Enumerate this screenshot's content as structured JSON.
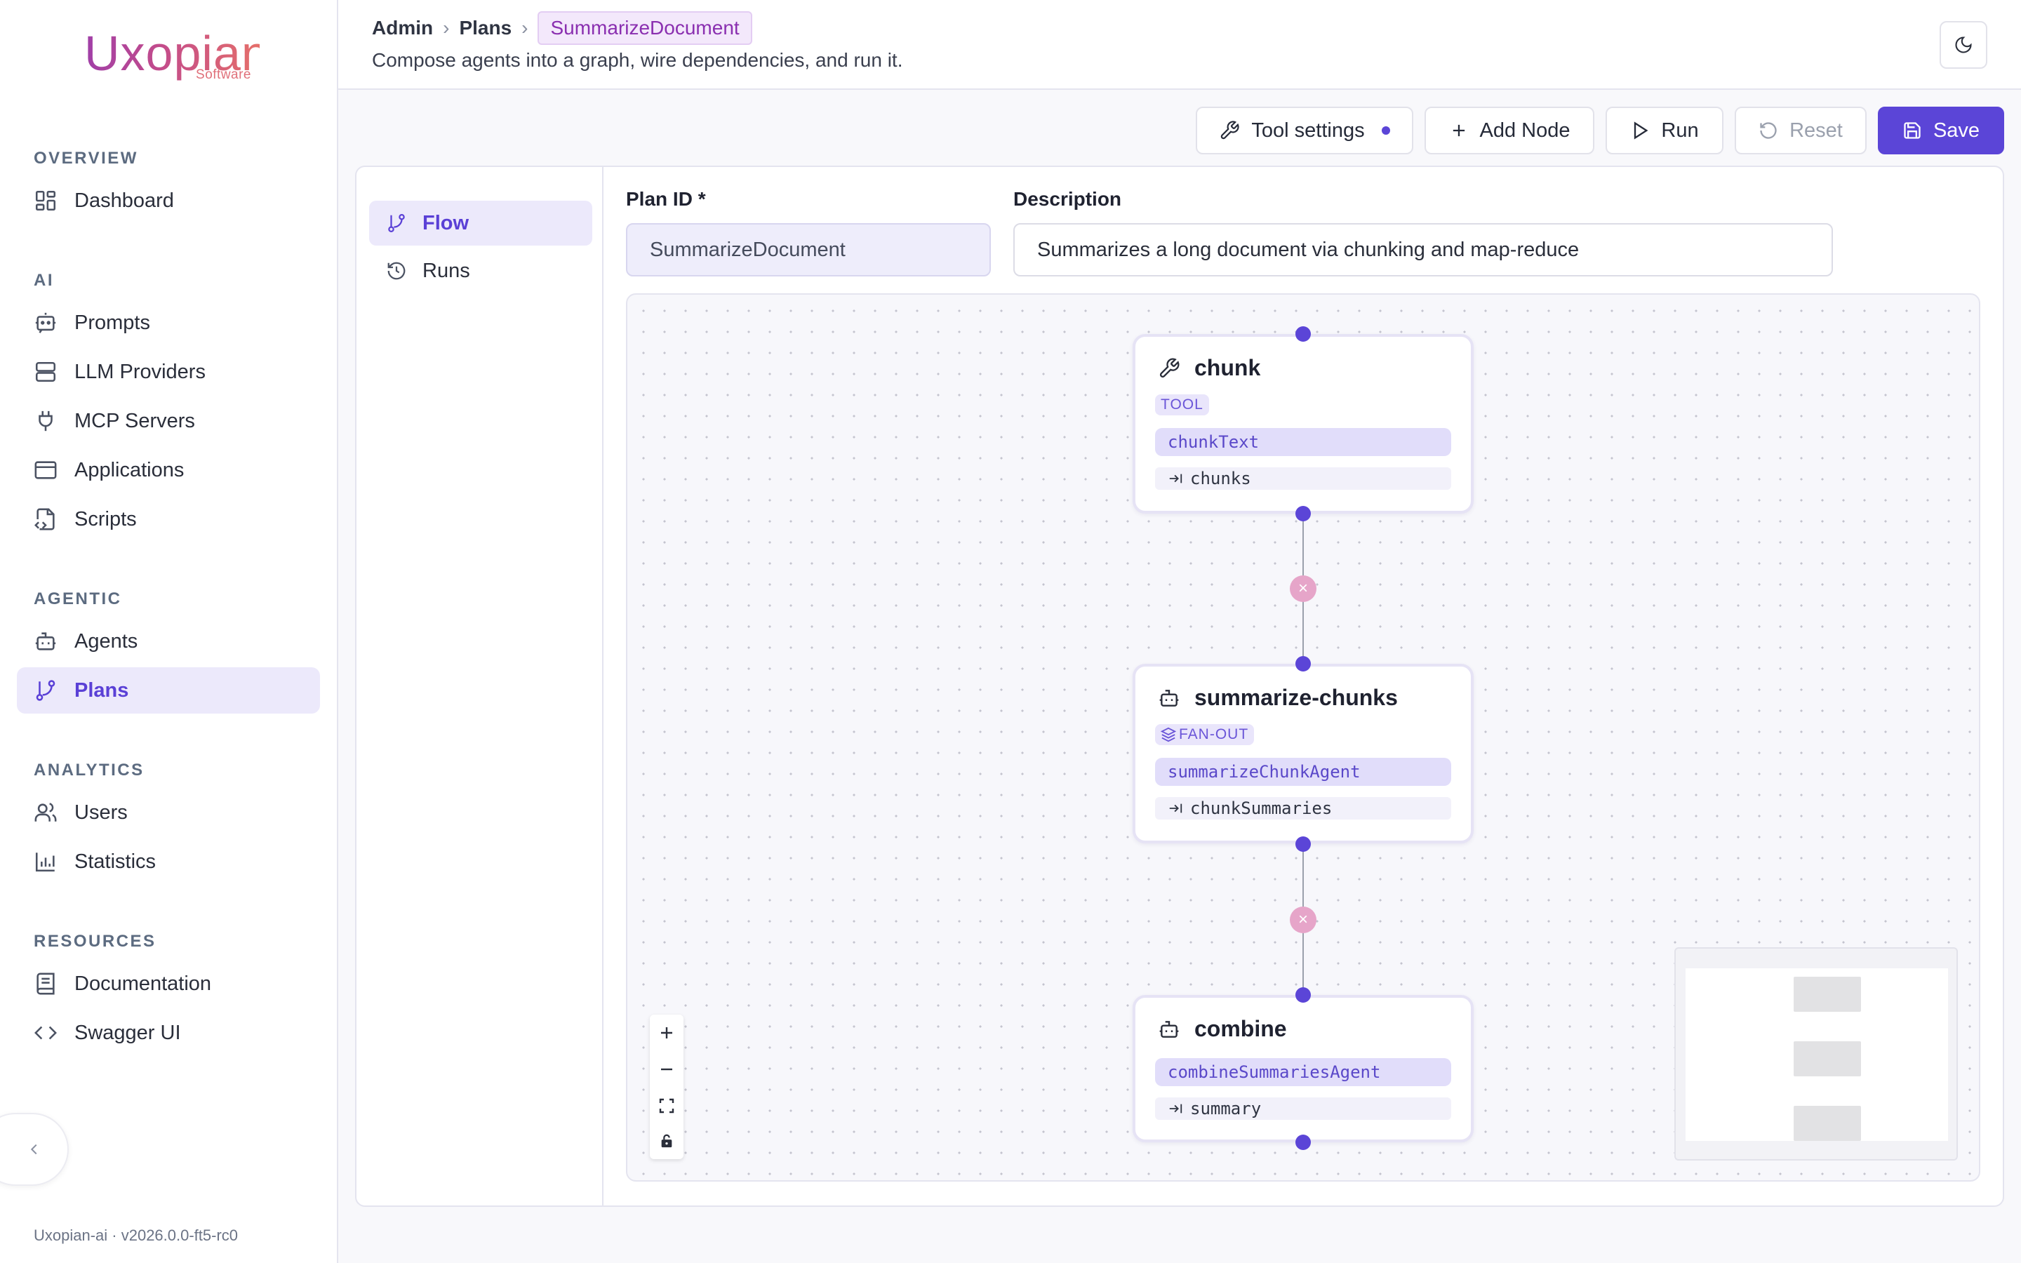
{
  "brand": {
    "name": "Uxopian",
    "sub": "Software"
  },
  "sidebar": {
    "sections": [
      {
        "title": "OVERVIEW",
        "items": [
          {
            "label": "Dashboard",
            "icon": "dashboard-icon"
          }
        ]
      },
      {
        "title": "AI",
        "items": [
          {
            "label": "Prompts",
            "icon": "chat-bot-icon"
          },
          {
            "label": "LLM Providers",
            "icon": "server-icon"
          },
          {
            "label": "MCP Servers",
            "icon": "plug-icon"
          },
          {
            "label": "Applications",
            "icon": "app-window-icon"
          },
          {
            "label": "Scripts",
            "icon": "file-code-icon"
          }
        ]
      },
      {
        "title": "AGENTIC",
        "items": [
          {
            "label": "Agents",
            "icon": "bot-icon"
          },
          {
            "label": "Plans",
            "icon": "git-branch-icon",
            "active": true
          }
        ]
      },
      {
        "title": "ANALYTICS",
        "items": [
          {
            "label": "Users",
            "icon": "users-icon"
          },
          {
            "label": "Statistics",
            "icon": "bar-chart-icon"
          }
        ]
      },
      {
        "title": "RESOURCES",
        "items": [
          {
            "label": "Documentation",
            "icon": "book-icon"
          },
          {
            "label": "Swagger UI",
            "icon": "code-icon"
          }
        ]
      }
    ],
    "version": "Uxopian-ai · v2026.0.0-ft5-rc0"
  },
  "header": {
    "breadcrumb": [
      "Admin",
      "Plans",
      "SummarizeDocument"
    ],
    "subtitle": "Compose agents into a graph, wire dependencies, and run it."
  },
  "toolbar": {
    "tool_settings": "Tool settings",
    "add_node": "Add Node",
    "run": "Run",
    "reset": "Reset",
    "save": "Save"
  },
  "subnav": {
    "flow": "Flow",
    "runs": "Runs"
  },
  "form": {
    "plan_id_label": "Plan ID *",
    "plan_id_value": "SummarizeDocument",
    "description_label": "Description",
    "description_value": "Summarizes a long document via chunking and map-reduce"
  },
  "graph": {
    "nodes": [
      {
        "title": "chunk",
        "badge": "TOOL",
        "ref": "chunkText",
        "output": "chunks"
      },
      {
        "title": "summarize-chunks",
        "badge": "FAN-OUT",
        "ref": "summarizeChunkAgent",
        "output": "chunkSummaries"
      },
      {
        "title": "combine",
        "ref": "combineSummariesAgent",
        "output": "summary"
      }
    ],
    "edge_delete_glyph": "×"
  },
  "colors": {
    "accent": "#5b45d7",
    "active_bg": "#ece9fb",
    "edge_button": "#e6a5c9"
  }
}
